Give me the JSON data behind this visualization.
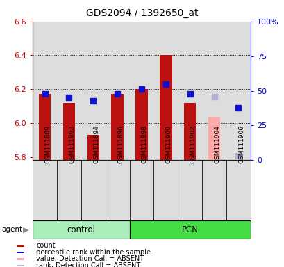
{
  "title": "GDS2094 / 1392650_at",
  "samples": [
    "GSM111889",
    "GSM111892",
    "GSM111894",
    "GSM111896",
    "GSM111898",
    "GSM111900",
    "GSM111902",
    "GSM111904",
    "GSM111906"
  ],
  "groups": [
    "control",
    "control",
    "control",
    "control",
    "PCN",
    "PCN",
    "PCN",
    "PCN",
    "PCN"
  ],
  "bar_values": [
    6.17,
    6.12,
    5.93,
    6.17,
    6.2,
    6.4,
    6.12,
    null,
    null
  ],
  "absent_bar_values": [
    null,
    null,
    null,
    null,
    null,
    null,
    null,
    6.035,
    null
  ],
  "dot_values": [
    6.17,
    6.15,
    6.13,
    6.17,
    6.2,
    6.23,
    6.17,
    null,
    6.09
  ],
  "absent_dot_values": [
    null,
    null,
    null,
    null,
    null,
    null,
    null,
    6.155,
    5.805
  ],
  "ylim": [
    5.78,
    6.6
  ],
  "y_ticks": [
    5.8,
    6.0,
    6.2,
    6.4,
    6.6
  ],
  "right_yticks": [
    0,
    25,
    50,
    75,
    100
  ],
  "right_yticklabels": [
    "0",
    "25",
    "50",
    "75",
    "100%"
  ],
  "grid_lines": [
    6.0,
    6.2,
    6.4
  ],
  "base_value": 5.78,
  "bar_color": "#bb1111",
  "absent_bar_color": "#ffaaaa",
  "dot_color": "#1111cc",
  "absent_dot_color": "#b0b0d0",
  "col_bg_color": "#dddddd",
  "legend_colors": [
    "#bb1111",
    "#1111cc",
    "#ffaaaa",
    "#b8b8d8"
  ],
  "legend_labels": [
    "count",
    "percentile rank within the sample",
    "value, Detection Call = ABSENT",
    "rank, Detection Call = ABSENT"
  ],
  "control_color": "#aaeebb",
  "pcn_color": "#44dd44",
  "agent_label": "agent"
}
